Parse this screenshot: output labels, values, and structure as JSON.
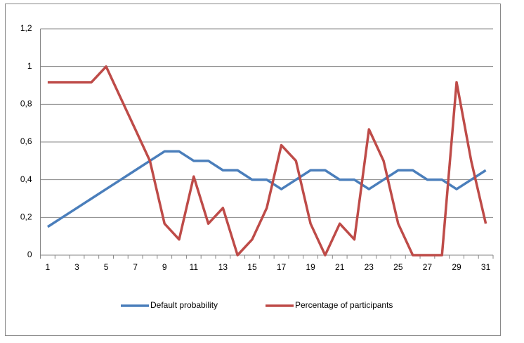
{
  "chart_data": {
    "type": "line",
    "categories": [
      1,
      null,
      3,
      null,
      5,
      null,
      7,
      null,
      9,
      null,
      11,
      null,
      13,
      null,
      15,
      null,
      17,
      null,
      19,
      null,
      21,
      null,
      23,
      null,
      25,
      null,
      27,
      null,
      29,
      null,
      31
    ],
    "series": [
      {
        "name": "Default probability",
        "color": "#4a7ebb",
        "values": [
          0.15,
          0.2,
          0.25,
          0.3,
          0.35,
          0.4,
          0.45,
          0.5,
          0.55,
          0.55,
          0.5,
          0.5,
          0.45,
          0.45,
          0.4,
          0.4,
          0.35,
          0.4,
          0.45,
          0.45,
          0.4,
          0.4,
          0.35,
          0.4,
          0.45,
          0.45,
          0.4,
          0.4,
          0.35,
          0.4,
          0.45
        ]
      },
      {
        "name": "Percentage of participants",
        "color": "#be4b48",
        "values": [
          0.917,
          0.917,
          0.917,
          0.917,
          1,
          0.833,
          0.667,
          0.5,
          0.167,
          0.083,
          0.417,
          0.167,
          0.25,
          0,
          0.083,
          0.25,
          0.583,
          0.5,
          0.167,
          0,
          0.167,
          0.083,
          0.667,
          0.5,
          0.167,
          0,
          0,
          0,
          0.917,
          0.5,
          0.167
        ]
      }
    ],
    "ylim": [
      0,
      1.2
    ],
    "yticks": [
      0,
      {
        "value": 0.2,
        "label": "0,2"
      },
      {
        "value": 0.4,
        "label": "0,4"
      },
      {
        "value": 0.6,
        "label": "0,6"
      },
      {
        "value": 0.8,
        "label": "0,8"
      },
      1,
      {
        "value": 1.2,
        "label": "1,2"
      }
    ],
    "grid": true,
    "legend": "bottom"
  }
}
